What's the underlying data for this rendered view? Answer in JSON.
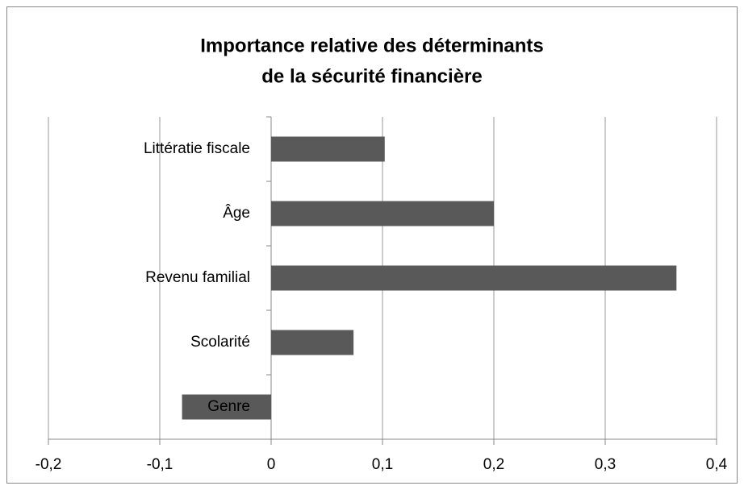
{
  "chart_data": {
    "type": "bar",
    "orientation": "horizontal",
    "title": [
      "Importance relative des déterminants",
      "de la sécurité financière"
    ],
    "categories": [
      "Littératie fiscale",
      "Âge",
      "Revenu familial",
      "Scolarité",
      "Genre"
    ],
    "values": [
      0.102,
      0.2,
      0.364,
      0.074,
      -0.08
    ],
    "color": "#595959",
    "xlim": [
      -0.2,
      0.4
    ],
    "xticks": [
      {
        "value": -0.2,
        "label": "-0,2"
      },
      {
        "value": -0.1,
        "label": "-0,1"
      },
      0,
      {
        "value": 0.1,
        "label": "0,1"
      },
      {
        "value": 0.2,
        "label": "0,2"
      },
      {
        "value": 0.3,
        "label": "0,3"
      },
      {
        "value": 0.4,
        "label": "0,4"
      }
    ],
    "grid": true
  }
}
